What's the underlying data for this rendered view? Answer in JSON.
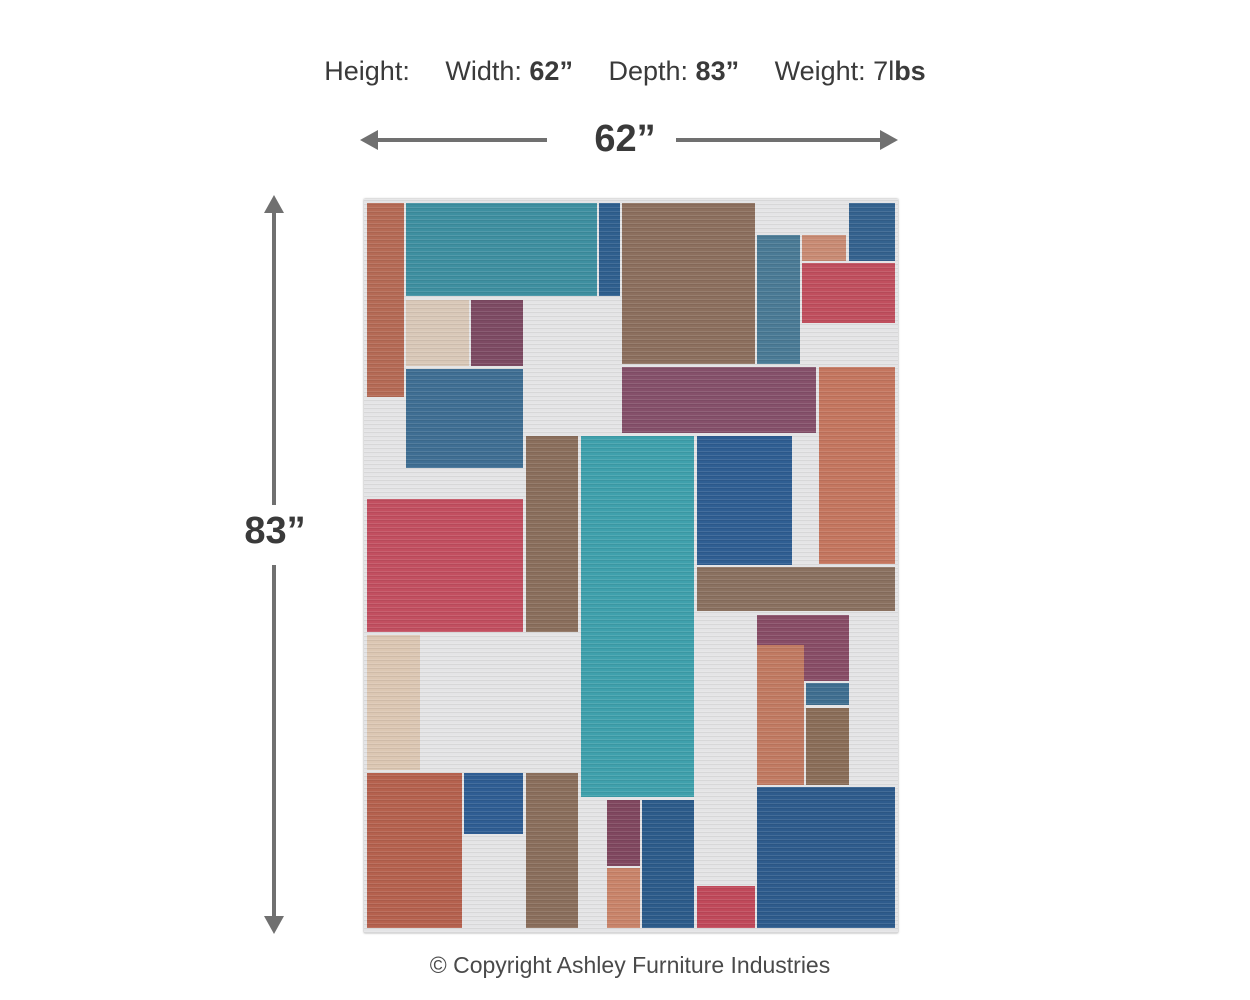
{
  "specs": {
    "height_label": "Height:",
    "width_label": "Width:",
    "width_value": "62”",
    "depth_label": "Depth:",
    "depth_value": "83”",
    "weight_label": "Weight:",
    "weight_value_prefix": "7l",
    "weight_value_unit": "bs"
  },
  "dimension_labels": {
    "horizontal": "62”",
    "vertical": "83”"
  },
  "product": {
    "type": "rug",
    "colors": [
      "#b56a55",
      "#3e8fa0",
      "#2f5f8e",
      "#8c6f5e",
      "#c04f5e",
      "#85506a",
      "#d9c8b8",
      "#e4e4e6"
    ]
  },
  "footer": {
    "copyright": "© Copyright Ashley Furniture Industries"
  }
}
